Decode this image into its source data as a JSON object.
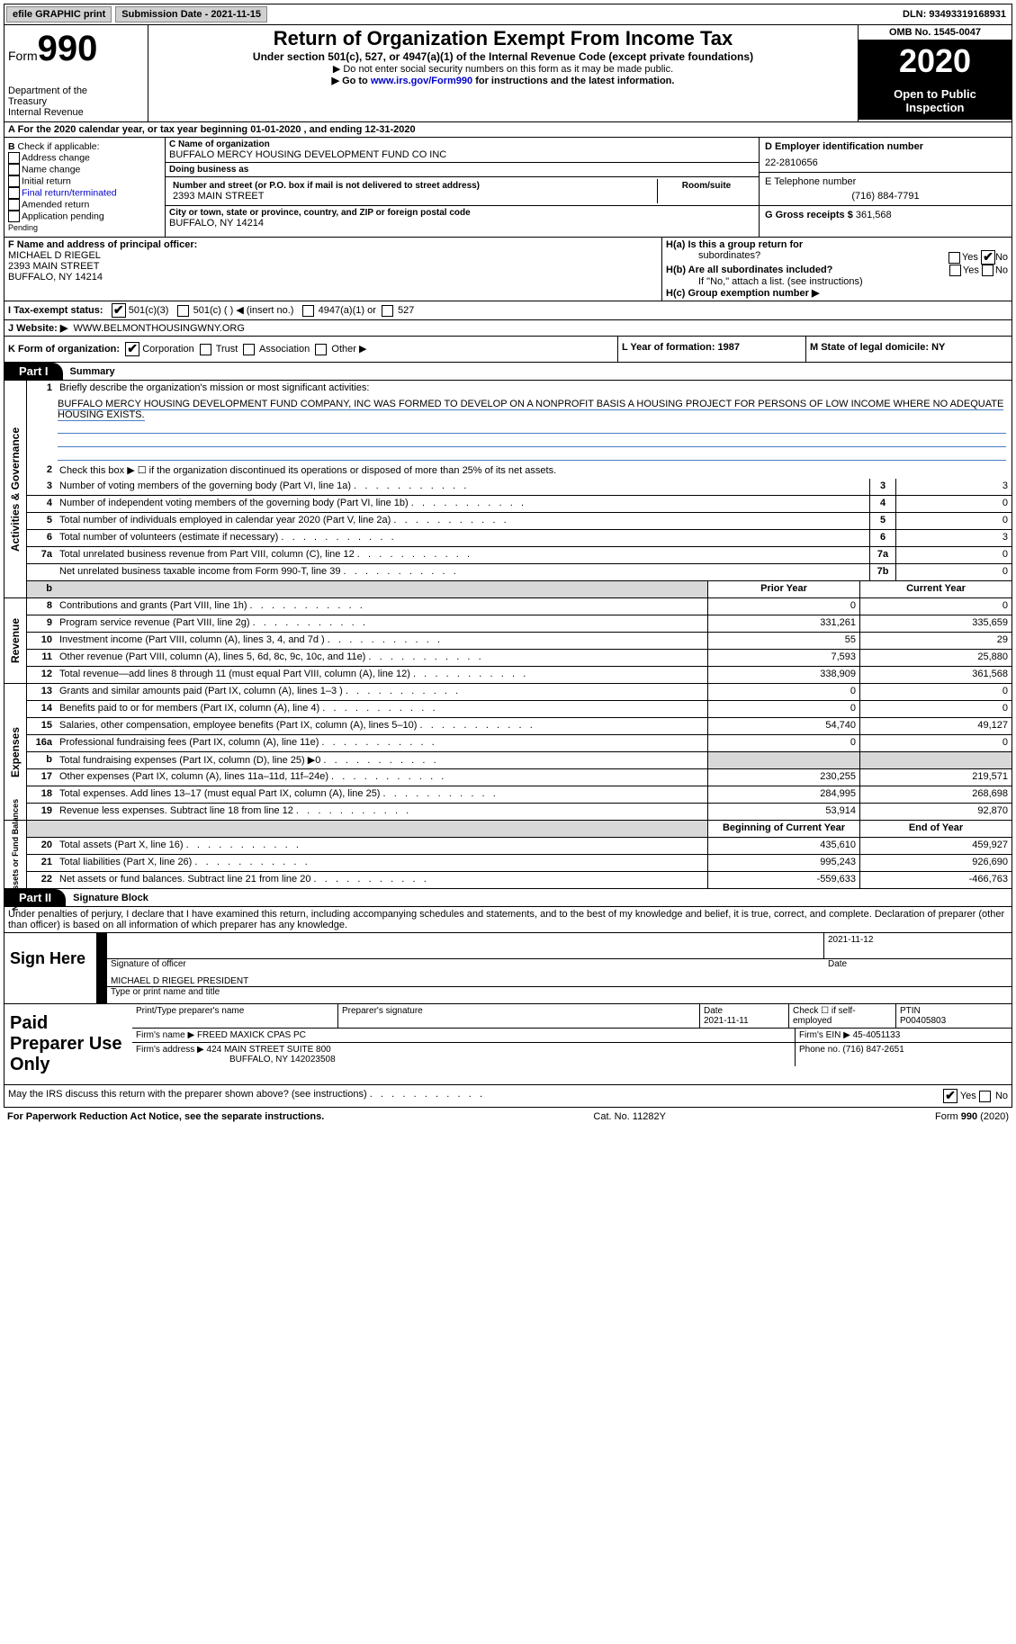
{
  "topbar": {
    "efile_label": "efile GRAPHIC print",
    "submission_label": "Submission Date - 2021-11-15",
    "dln_label": "DLN: 93493319168931"
  },
  "header": {
    "form_word": "Form",
    "form_number": "990",
    "dept1": "Department of the",
    "dept2": "Treasury",
    "dept3": "Internal Revenue",
    "title": "Return of Organization Exempt From Income Tax",
    "subtitle": "Under section 501(c), 527, or 4947(a)(1) of the Internal Revenue Code (except private foundations)",
    "note1_prefix": "▶ Do not enter social security numbers on this form as it may be made public.",
    "note2_prefix": "▶ Go to ",
    "note2_link": "www.irs.gov/Form990",
    "note2_suffix": " for instructions and the latest information.",
    "omb": "OMB No. 1545-0047",
    "year": "2020",
    "openpublic1": "Open to Public",
    "openpublic2": "Inspection"
  },
  "line_a": "A For the 2020 calendar year, or tax year beginning 01-01-2020    , and ending 12-31-2020",
  "B": {
    "hdr1": "B",
    "hdr2": " Check if applicable:",
    "items": [
      "Address change",
      "Name change",
      "Initial return",
      "Final return/terminated",
      "Amended return",
      "Application pending"
    ],
    "pending_label": "Pending"
  },
  "C": {
    "name_label": "C Name of organization",
    "name": "BUFFALO MERCY HOUSING DEVELOPMENT FUND CO INC",
    "dba_label": "Doing business as",
    "dba": "",
    "street_label": "Number and street (or P.O. box if mail is not delivered to street address)",
    "room_label": "Room/suite",
    "street": "2393 MAIN STREET",
    "city_label": "City or town, state or province, country, and ZIP or foreign postal code",
    "city": "BUFFALO, NY  14214"
  },
  "D": {
    "label": "D Employer identification number",
    "value": "22-2810656",
    "phone_label": "E Telephone number",
    "phone": "(716) 884-7791",
    "gross_label": "G Gross receipts $",
    "gross": "361,568"
  },
  "F": {
    "label": "F  Name and address of principal officer:",
    "name": "MICHAEL D RIEGEL",
    "street": "2393 MAIN STREET",
    "city": "BUFFALO, NY  14214"
  },
  "H": {
    "a_label": "H(a)  Is this a group return for",
    "a_label2": "subordinates?",
    "b_label": "H(b)  Are all subordinates included?",
    "b_note": "If \"No,\" attach a list. (see instructions)",
    "c_label": "H(c)  Group exemption number ▶",
    "yes": "Yes",
    "no": "No"
  },
  "I": {
    "label": "I    Tax-exempt status:",
    "opt1": "501(c)(3)",
    "opt2": "501(c) (   ) ◀ (insert no.)",
    "opt3": "4947(a)(1) or",
    "opt4": "527"
  },
  "J": {
    "label": "J   Website: ▶",
    "value": "WWW.BELMONTHOUSINGWNY.ORG"
  },
  "K": {
    "label": "K Form of organization:",
    "opts": [
      "Corporation",
      "Trust",
      "Association",
      "Other ▶"
    ]
  },
  "L": {
    "label": "L Year of formation: 1987"
  },
  "M": {
    "label": "M State of legal domicile: NY"
  },
  "parts": {
    "p1_tab": "Part I",
    "p1_title": "Summary",
    "p2_tab": "Part II",
    "p2_title": "Signature Block"
  },
  "summary": {
    "line1": "Briefly describe the organization's mission or most significant activities:",
    "mission": "BUFFALO MERCY HOUSING DEVELOPMENT FUND COMPANY, INC WAS FORMED TO DEVELOP ON A NONPROFIT BASIS A HOUSING PROJECT FOR PERSONS OF LOW INCOME WHERE NO ADEQUATE HOUSING EXISTS.",
    "line2": "Check this box ▶ ☐ if the organization discontinued its operations or disposed of more than 25% of its net assets.",
    "line3": "Number of voting members of the governing body (Part VI, line 1a)",
    "line4": "Number of independent voting members of the governing body (Part VI, line 1b)",
    "line5": "Total number of individuals employed in calendar year 2020 (Part V, line 2a)",
    "line6": "Total number of volunteers (estimate if necessary)",
    "line7a": "Total unrelated business revenue from Part VIII, column (C), line 12",
    "line7b": "Net unrelated business taxable income from Form 990-T, line 39",
    "vals": {
      "3": "3",
      "4": "0",
      "5": "0",
      "6": "3",
      "7a": "0",
      "7b": "0"
    },
    "prior_hdr": "Prior Year",
    "curr_hdr": "Current Year",
    "rows_rev": [
      {
        "n": "8",
        "txt": "Contributions and grants (Part VIII, line 1h)",
        "p": "0",
        "c": "0"
      },
      {
        "n": "9",
        "txt": "Program service revenue (Part VIII, line 2g)",
        "p": "331,261",
        "c": "335,659"
      },
      {
        "n": "10",
        "txt": "Investment income (Part VIII, column (A), lines 3, 4, and 7d )",
        "p": "55",
        "c": "29"
      },
      {
        "n": "11",
        "txt": "Other revenue (Part VIII, column (A), lines 5, 6d, 8c, 9c, 10c, and 11e)",
        "p": "7,593",
        "c": "25,880"
      },
      {
        "n": "12",
        "txt": "Total revenue—add lines 8 through 11 (must equal Part VIII, column (A), line 12)",
        "p": "338,909",
        "c": "361,568"
      }
    ],
    "rows_exp": [
      {
        "n": "13",
        "txt": "Grants and similar amounts paid (Part IX, column (A), lines 1–3 )",
        "p": "0",
        "c": "0"
      },
      {
        "n": "14",
        "txt": "Benefits paid to or for members (Part IX, column (A), line 4)",
        "p": "0",
        "c": "0"
      },
      {
        "n": "15",
        "txt": "Salaries, other compensation, employee benefits (Part IX, column (A), lines 5–10)",
        "p": "54,740",
        "c": "49,127"
      },
      {
        "n": "16a",
        "txt": "Professional fundraising fees (Part IX, column (A), line 11e)",
        "p": "0",
        "c": "0"
      },
      {
        "n": "b",
        "txt": "Total fundraising expenses (Part IX, column (D), line 25) ▶0",
        "p": "",
        "c": "",
        "shade": true
      },
      {
        "n": "17",
        "txt": "Other expenses (Part IX, column (A), lines 11a–11d, 11f–24e)",
        "p": "230,255",
        "c": "219,571"
      },
      {
        "n": "18",
        "txt": "Total expenses. Add lines 13–17 (must equal Part IX, column (A), line 25)",
        "p": "284,995",
        "c": "268,698"
      },
      {
        "n": "19",
        "txt": "Revenue less expenses. Subtract line 18 from line 12",
        "p": "53,914",
        "c": "92,870"
      }
    ],
    "beg_hdr": "Beginning of Current Year",
    "end_hdr": "End of Year",
    "rows_net": [
      {
        "n": "20",
        "txt": "Total assets (Part X, line 16)",
        "p": "435,610",
        "c": "459,927"
      },
      {
        "n": "21",
        "txt": "Total liabilities (Part X, line 26)",
        "p": "995,243",
        "c": "926,690"
      },
      {
        "n": "22",
        "txt": "Net assets or fund balances. Subtract line 21 from line 20",
        "p": "-559,633",
        "c": "-466,763"
      }
    ]
  },
  "side_labels": {
    "gov": "Activities & Governance",
    "rev": "Revenue",
    "exp": "Expenses",
    "net": "Net Assets or Fund Balances"
  },
  "declaration": "Under penalties of perjury, I declare that I have examined this return, including accompanying schedules and statements, and to the best of my knowledge and belief, it is true, correct, and complete. Declaration of preparer (other than officer) is based on all information of which preparer has any knowledge.",
  "sign": {
    "here": "Sign Here",
    "sig_label": "Signature of officer",
    "date_label": "Date",
    "date": "2021-11-12",
    "name": "MICHAEL D RIEGEL  PRESIDENT",
    "type_label": "Type or print name and title"
  },
  "prep": {
    "label": "Paid Preparer Use Only",
    "r1_c1": "Print/Type preparer's name",
    "r1_c2": "Preparer's signature",
    "r1_c3_label": "Date",
    "r1_c3": "2021-11-11",
    "r1_c4_label": "Check ☐ if self-employed",
    "r1_c5_label": "PTIN",
    "r1_c5": "P00405803",
    "r2_label": "Firm's name    ▶",
    "r2_val": "FREED MAXICK CPAS PC",
    "r2_ein_label": "Firm's EIN ▶",
    "r2_ein": "45-4051133",
    "r3_label": "Firm's address ▶",
    "r3_val1": "424 MAIN STREET SUITE 800",
    "r3_val2": "BUFFALO, NY  142023508",
    "r3_phone_label": "Phone no.",
    "r3_phone": "(716) 847-2651"
  },
  "discuss": "May the IRS discuss this return with the preparer shown above? (see instructions)",
  "footer": {
    "left": "For Paperwork Reduction Act Notice, see the separate instructions.",
    "mid": "Cat. No. 11282Y",
    "right": "Form 990 (2020)"
  }
}
